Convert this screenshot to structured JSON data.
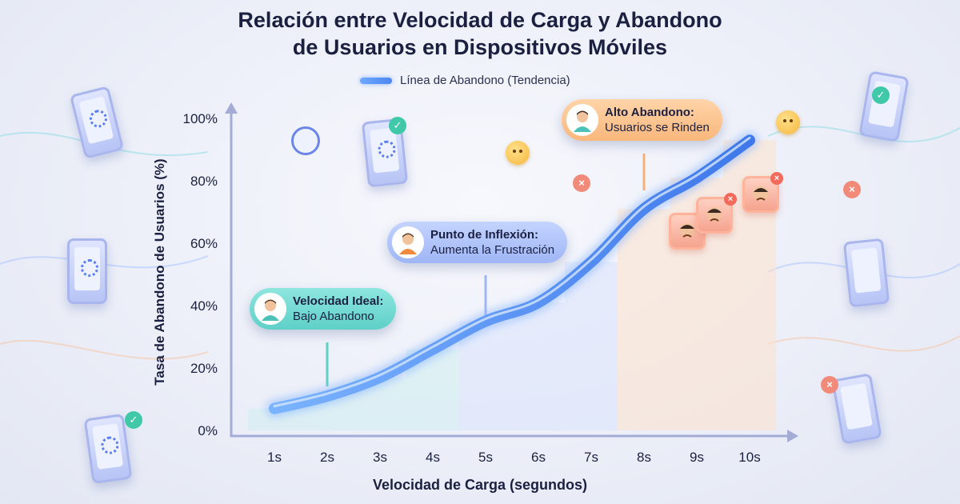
{
  "chart_data": {
    "type": "line",
    "title": "Relación entre Velocidad de Carga y Abandono de Usuarios en Dispositivos Móviles",
    "title_lines": [
      "Relación entre Velocidad de Carga y Abandono",
      "de Usuarios en Dispositivos Móviles"
    ],
    "xlabel": "Velocidad de Carga (segundos)",
    "ylabel": "Tasa de Abandono de Usuarios (%)",
    "categories": [
      "1s",
      "2s",
      "3s",
      "4s",
      "5s",
      "6s",
      "7s",
      "8s",
      "9s",
      "10s"
    ],
    "y_ticks": [
      "0%",
      "20%",
      "40%",
      "60%",
      "80%",
      "100%"
    ],
    "ylim": [
      0,
      100
    ],
    "grid": false,
    "legend_position": "top",
    "series": [
      {
        "name": "Línea de Abandono (Tendencia)",
        "x": [
          1,
          2,
          3,
          4,
          5,
          6,
          7,
          8,
          9,
          10
        ],
        "values": [
          7,
          11,
          17,
          26,
          35,
          41,
          54,
          71,
          81,
          93
        ],
        "color": "#4d86f0"
      }
    ],
    "annotations": [
      {
        "x": 2,
        "title": "Velocidad Ideal:",
        "text": "Bajo Abandono",
        "color": "#5fd0c8"
      },
      {
        "x": 5,
        "title": "Punto de Inflexión:",
        "text": "Aumenta la Frustración",
        "color": "#9fb6f6"
      },
      {
        "x": 8,
        "title": "Alto Abandono:",
        "text": "Usuarios se Rinden",
        "color": "#f9b77c"
      }
    ],
    "zone_colors": {
      "ideal": "#cfeff0",
      "inflexion": "#dbe4fb",
      "alto": "#fde2cc"
    }
  }
}
